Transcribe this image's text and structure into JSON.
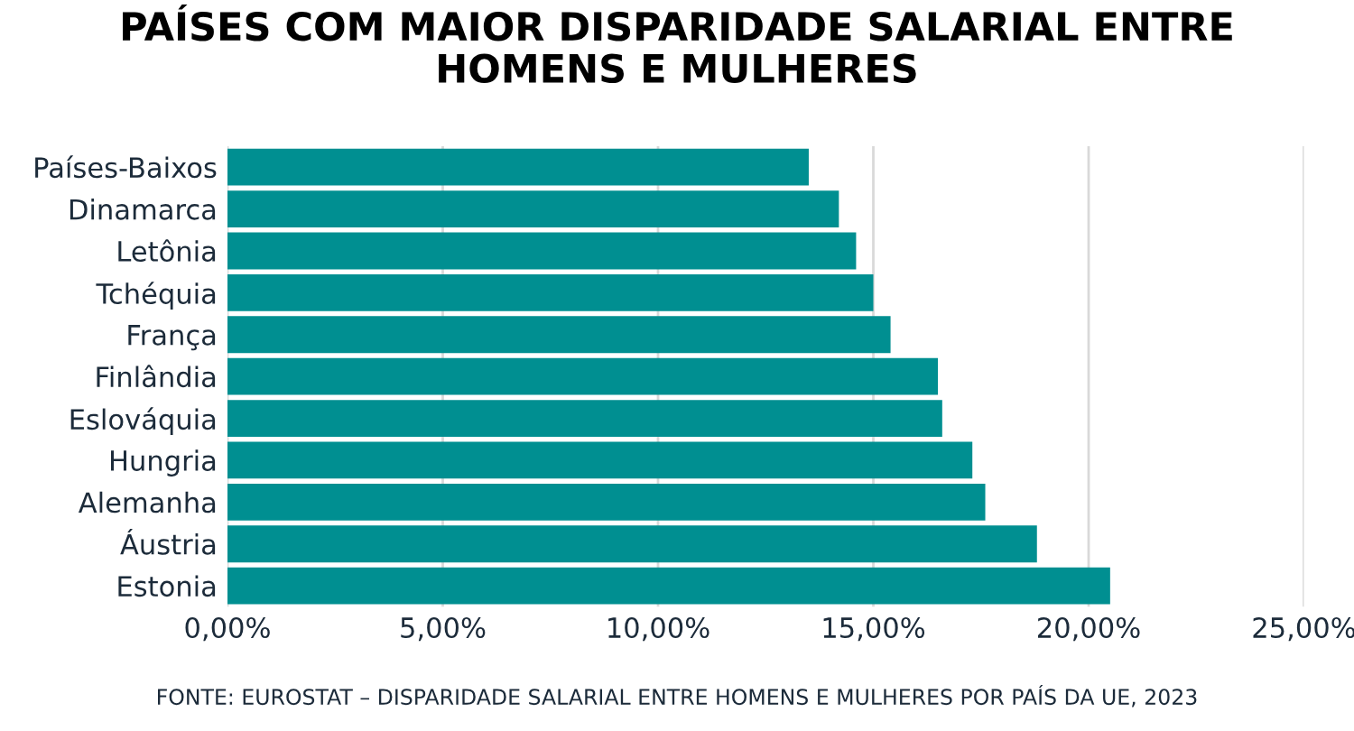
{
  "chart_data": {
    "type": "bar",
    "orientation": "horizontal",
    "title": "PAÍSES COM MAIOR DISPARIDADE SALARIAL ENTRE\nHOMENS E MULHERES",
    "categories": [
      "Países-Baixos",
      "Dinamarca",
      "Letônia",
      "Tchéquia",
      "França",
      "Finlândia",
      "Eslováquia",
      "Hungria",
      "Alemanha",
      "Áustria",
      "Estonia"
    ],
    "values": [
      13.5,
      14.2,
      14.6,
      15.0,
      15.4,
      16.5,
      16.6,
      17.3,
      17.6,
      18.8,
      20.5
    ],
    "color": "#008f91",
    "xlim": [
      0,
      25
    ],
    "xticks": [
      {
        "value": 0,
        "label": "0,00%"
      },
      {
        "value": 5,
        "label": "5,00%"
      },
      {
        "value": 10,
        "label": "10,00%"
      },
      {
        "value": 15,
        "label": "15,00%"
      },
      {
        "value": 20,
        "label": "20,00%"
      },
      {
        "value": 25,
        "label": "25,00%"
      }
    ],
    "grid": "x",
    "annotations": [
      "FONTE: EUROSTAT – DISPARIDADE SALARIAL ENTRE HOMENS E MULHERES POR PAÍS DA UE, 2023"
    ]
  }
}
